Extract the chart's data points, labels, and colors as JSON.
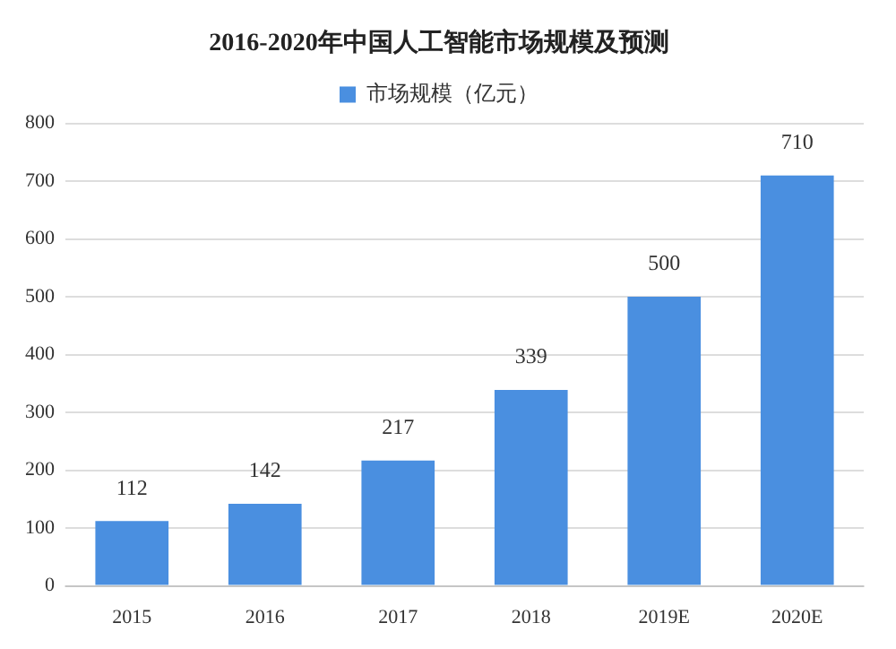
{
  "chart_data": {
    "type": "bar",
    "title": "2016-2020年中国人工智能市场规模及预测",
    "categories": [
      "2015",
      "2016",
      "2017",
      "2018",
      "2019E",
      "2020E"
    ],
    "series": [
      {
        "name": "市场规模（亿元）",
        "color": "#4a8fe0",
        "values": [
          112,
          142,
          217,
          339,
          500,
          710
        ]
      }
    ],
    "ylim": [
      0,
      800
    ],
    "yticks": [
      0,
      100,
      200,
      300,
      400,
      500,
      600,
      700,
      800
    ],
    "grid": "y",
    "legend": "top",
    "data_labels": true
  }
}
